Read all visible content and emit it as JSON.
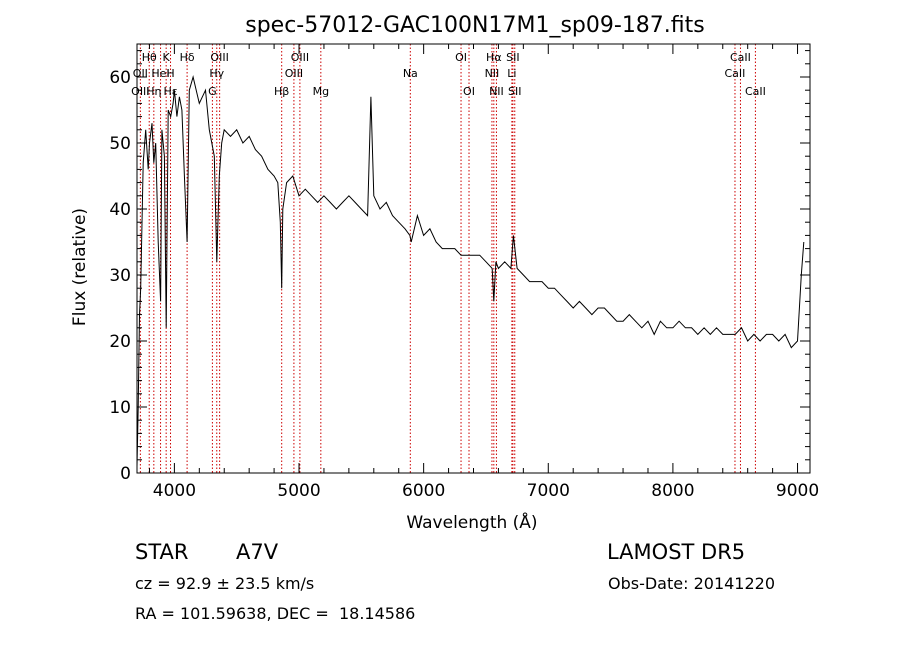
{
  "chart_data": {
    "type": "line",
    "title": "spec-57012-GAC100N17M1_sp09-187.fits",
    "xlabel": "Wavelength (Å)",
    "ylabel": "Flux (relative)",
    "xlim": [
      3700,
      9100
    ],
    "ylim": [
      0,
      65
    ],
    "xticks": [
      4000,
      5000,
      6000,
      7000,
      8000,
      9000
    ],
    "yticks": [
      0,
      10,
      20,
      30,
      40,
      50,
      60
    ],
    "grid": false,
    "series": [
      {
        "x": [
          3700,
          3710,
          3720,
          3730,
          3750,
          3770,
          3790,
          3800,
          3820,
          3835,
          3850,
          3870,
          3889,
          3900,
          3920,
          3934,
          3950,
          3970,
          3990,
          4000,
          4020,
          4040,
          4060,
          4080,
          4102,
          4120,
          4150,
          4200,
          4250,
          4280,
          4300,
          4320,
          4340,
          4360,
          4380,
          4400,
          4450,
          4500,
          4550,
          4600,
          4650,
          4700,
          4750,
          4800,
          4830,
          4850,
          4861,
          4870,
          4900,
          4950,
          5000,
          5050,
          5100,
          5150,
          5200,
          5250,
          5300,
          5350,
          5400,
          5450,
          5500,
          5550,
          5577,
          5600,
          5650,
          5700,
          5750,
          5800,
          5850,
          5890,
          5900,
          5950,
          6000,
          6050,
          6100,
          6150,
          6200,
          6250,
          6300,
          6350,
          6400,
          6450,
          6500,
          6550,
          6563,
          6580,
          6600,
          6650,
          6700,
          6720,
          6750,
          6800,
          6850,
          6900,
          6950,
          7000,
          7050,
          7100,
          7150,
          7200,
          7250,
          7300,
          7350,
          7400,
          7450,
          7500,
          7550,
          7600,
          7650,
          7700,
          7750,
          7800,
          7850,
          7900,
          7950,
          8000,
          8050,
          8100,
          8150,
          8200,
          8250,
          8300,
          8350,
          8400,
          8450,
          8500,
          8550,
          8600,
          8650,
          8700,
          8750,
          8800,
          8850,
          8900,
          8950,
          9000,
          9030,
          9050
        ],
        "values": [
          1,
          10,
          24,
          28,
          47,
          52,
          46,
          50,
          53,
          47,
          50,
          35,
          26,
          52,
          48,
          22,
          55,
          54,
          56,
          58,
          54,
          57,
          55,
          45,
          35,
          58,
          60,
          56,
          58,
          52,
          50,
          48,
          32,
          45,
          50,
          52,
          51,
          52,
          50,
          51,
          49,
          48,
          46,
          45,
          44,
          38,
          28,
          40,
          44,
          45,
          42,
          43,
          42,
          41,
          42,
          41,
          40,
          41,
          42,
          41,
          40,
          39,
          57,
          42,
          40,
          41,
          39,
          38,
          37,
          36,
          35,
          39,
          36,
          37,
          35,
          34,
          34,
          34,
          33,
          33,
          33,
          33,
          32,
          31,
          26,
          32,
          31,
          32,
          31,
          36,
          31,
          30,
          29,
          29,
          29,
          28,
          28,
          27,
          26,
          25,
          26,
          25,
          24,
          25,
          25,
          24,
          23,
          23,
          24,
          23,
          22,
          23,
          21,
          23,
          22,
          22,
          23,
          22,
          22,
          21,
          22,
          21,
          22,
          21,
          21,
          21,
          22,
          20,
          21,
          20,
          21,
          21,
          20,
          21,
          19,
          20,
          30,
          35
        ]
      }
    ],
    "line_labels": [
      {
        "label": "Hθ",
        "x": 3798,
        "row": 1
      },
      {
        "label": "K",
        "x": 3934,
        "row": 1
      },
      {
        "label": "Hδ",
        "x": 4102,
        "row": 1
      },
      {
        "label": "OIII",
        "x": 4363,
        "row": 1
      },
      {
        "label": "OIII",
        "x": 5007,
        "row": 1
      },
      {
        "label": "OI",
        "x": 6300,
        "row": 1
      },
      {
        "label": "Hα",
        "x": 6563,
        "row": 1
      },
      {
        "label": "SII",
        "x": 6716,
        "row": 1
      },
      {
        "label": "CaII",
        "x": 8542,
        "row": 1
      },
      {
        "label": "OII",
        "x": 3727,
        "row": 2
      },
      {
        "label": "HeI",
        "x": 3889,
        "row": 2
      },
      {
        "label": "H",
        "x": 3969,
        "row": 2
      },
      {
        "label": "Hγ",
        "x": 4340,
        "row": 2
      },
      {
        "label": "OIII",
        "x": 4959,
        "row": 2
      },
      {
        "label": "Na",
        "x": 5893,
        "row": 2
      },
      {
        "label": "NII",
        "x": 6548,
        "row": 2
      },
      {
        "label": "Li",
        "x": 6708,
        "row": 2
      },
      {
        "label": "CaII",
        "x": 8498,
        "row": 2
      },
      {
        "label": "OIII",
        "x": 3727,
        "row": 3
      },
      {
        "label": "Hη",
        "x": 3835,
        "row": 3
      },
      {
        "label": "Hε",
        "x": 3970,
        "row": 3
      },
      {
        "label": "G",
        "x": 4305,
        "row": 3
      },
      {
        "label": "Hβ",
        "x": 4861,
        "row": 3
      },
      {
        "label": "Mg",
        "x": 5175,
        "row": 3
      },
      {
        "label": "OI",
        "x": 6364,
        "row": 3
      },
      {
        "label": "NII",
        "x": 6584,
        "row": 3
      },
      {
        "label": "SII",
        "x": 6731,
        "row": 3
      },
      {
        "label": "CaII",
        "x": 8662,
        "row": 3
      }
    ],
    "line_positions": [
      3727,
      3798,
      3835,
      3889,
      3934,
      3969,
      4102,
      4305,
      4340,
      4363,
      4861,
      4959,
      5007,
      5175,
      5893,
      6300,
      6364,
      6548,
      6563,
      6584,
      6708,
      6716,
      6731,
      8498,
      8542,
      8662
    ]
  },
  "info": {
    "object_class": "STAR",
    "subclass": "A7V",
    "survey": "LAMOST DR5",
    "redshift": "cz = 92.9 ± 23.5 km/s",
    "obs_date": "Obs-Date: 20141220",
    "coords": "RA = 101.59638, DEC =  18.14586"
  },
  "colors": {
    "spectrum": "#000000",
    "line_markers": "#cc0000"
  }
}
